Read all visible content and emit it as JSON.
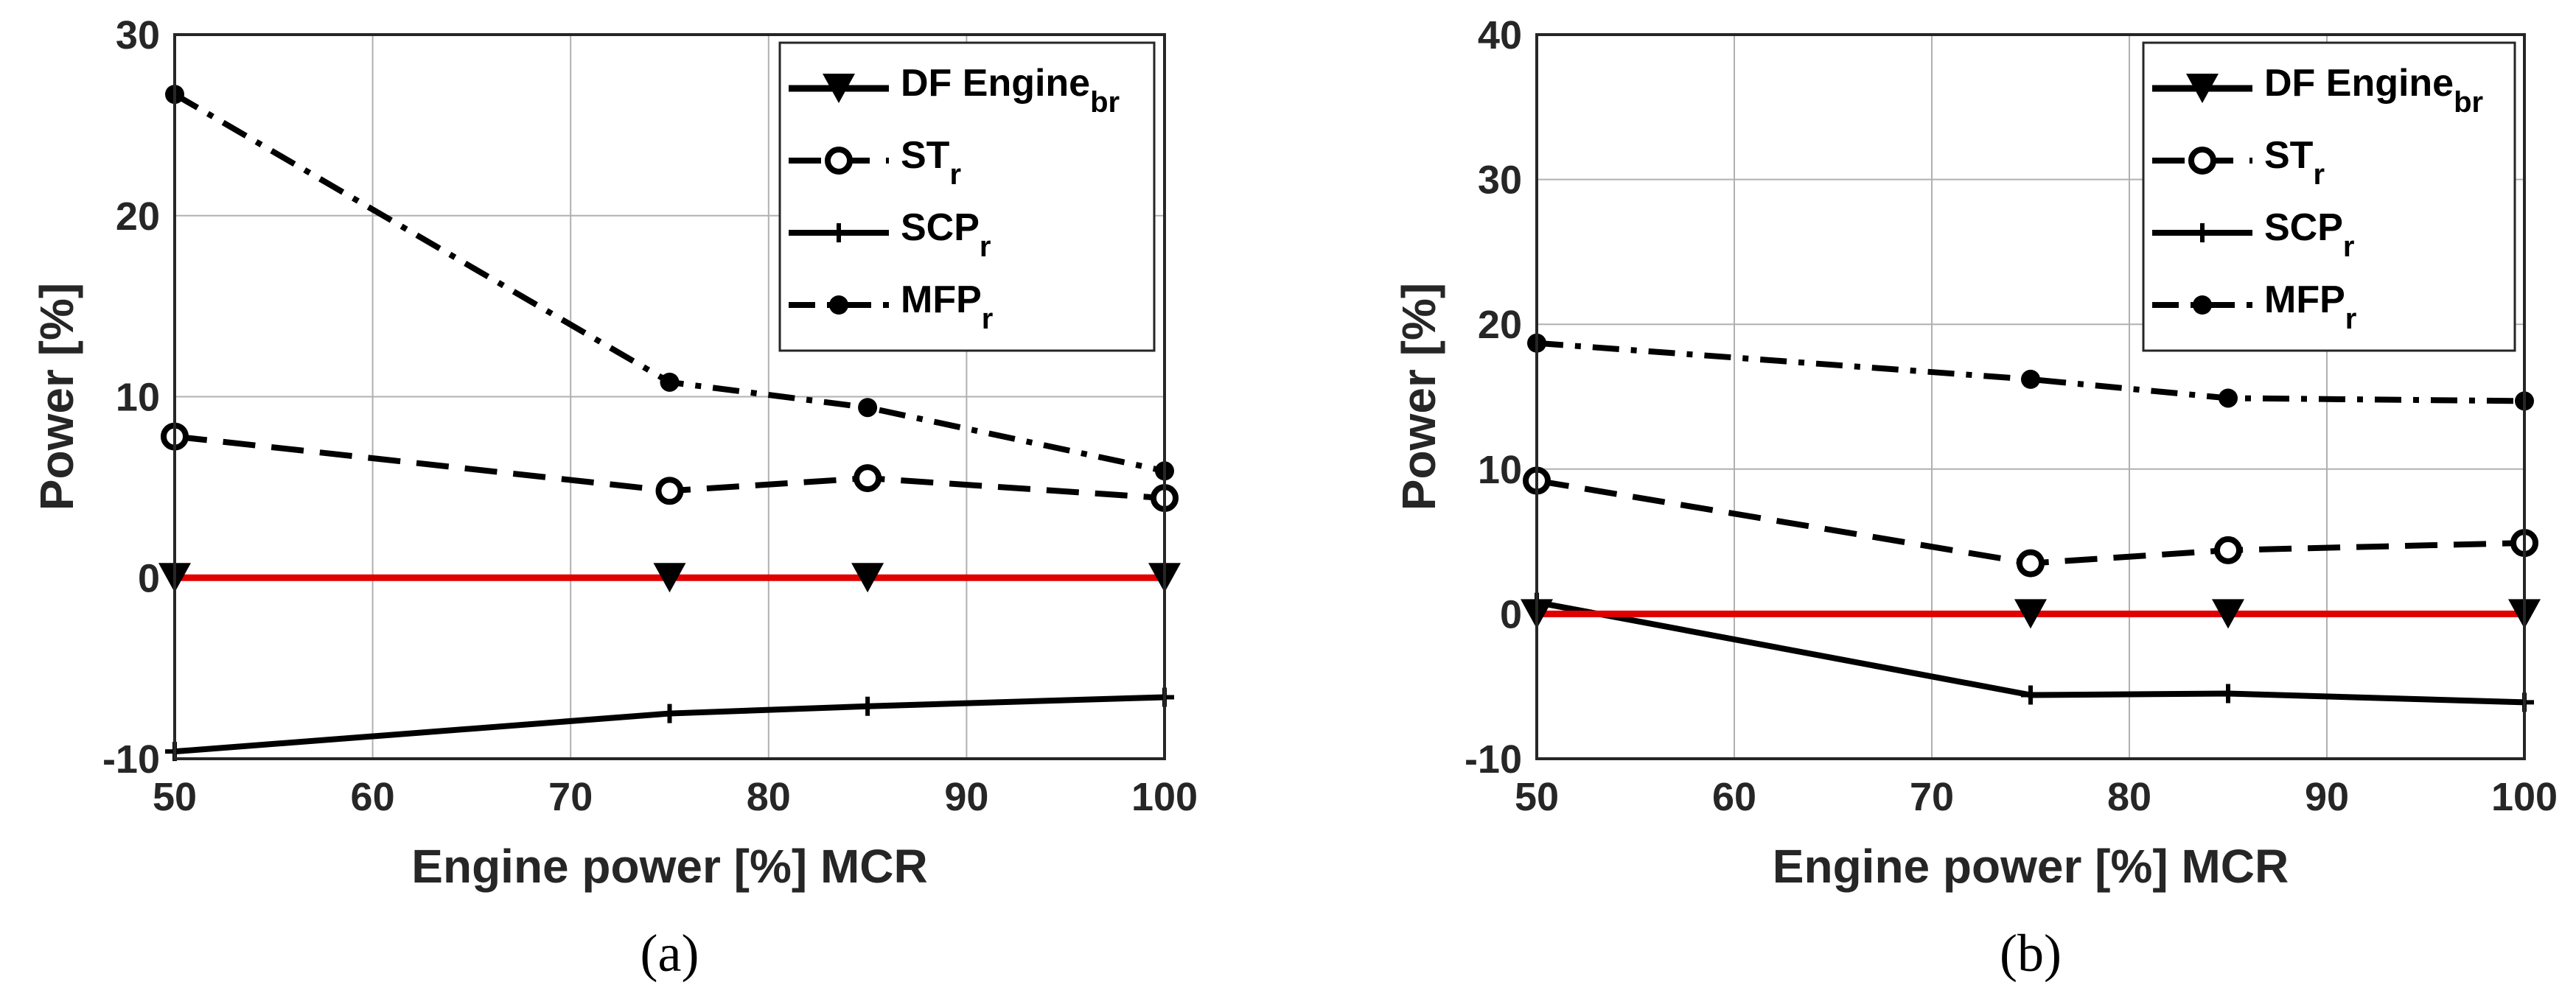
{
  "chart_data": [
    {
      "type": "line",
      "panel_label": "(a)",
      "xlabel": "Engine power [%] MCR",
      "ylabel": "Power [%]",
      "xlim": [
        50,
        100
      ],
      "ylim": [
        -10,
        30
      ],
      "xticks": [
        50,
        60,
        70,
        80,
        90,
        100
      ],
      "yticks": [
        -10,
        0,
        10,
        20,
        30
      ],
      "grid": true,
      "legend_position": "top-right",
      "x": [
        50,
        75,
        85,
        100
      ],
      "series": [
        {
          "name": "DF Engine",
          "sub": "br",
          "style": "solid-red",
          "marker": "triangle-down",
          "values": [
            0,
            0,
            0,
            0
          ]
        },
        {
          "name": "ST",
          "sub": "r",
          "style": "dashed",
          "marker": "circle-open",
          "values": [
            7.8,
            4.8,
            5.5,
            4.4
          ]
        },
        {
          "name": "SCP",
          "sub": "r",
          "style": "solid",
          "marker": "plus",
          "values": [
            -9.6,
            -7.5,
            -7.1,
            -6.6
          ]
        },
        {
          "name": "MFP",
          "sub": "r",
          "style": "dashdot",
          "marker": "circle-filled",
          "values": [
            26.7,
            10.8,
            9.4,
            5.9
          ]
        }
      ]
    },
    {
      "type": "line",
      "panel_label": "(b)",
      "xlabel": "Engine power [%] MCR",
      "ylabel": "Power [%]",
      "xlim": [
        50,
        100
      ],
      "ylim": [
        -10,
        40
      ],
      "xticks": [
        50,
        60,
        70,
        80,
        90,
        100
      ],
      "yticks": [
        -10,
        0,
        10,
        20,
        30,
        40
      ],
      "grid": true,
      "legend_position": "top-right",
      "x": [
        50,
        75,
        85,
        100
      ],
      "series": [
        {
          "name": "DF Engine",
          "sub": "br",
          "style": "solid-red",
          "marker": "triangle-down",
          "values": [
            0,
            0,
            0,
            0
          ]
        },
        {
          "name": "ST",
          "sub": "r",
          "style": "dashed",
          "marker": "circle-open",
          "values": [
            9.2,
            3.5,
            4.4,
            4.9
          ]
        },
        {
          "name": "SCP",
          "sub": "r",
          "style": "solid",
          "marker": "plus",
          "values": [
            0.8,
            -5.6,
            -5.5,
            -6.1
          ]
        },
        {
          "name": "MFP",
          "sub": "r",
          "style": "dashdot",
          "marker": "circle-filled",
          "values": [
            18.7,
            16.2,
            14.9,
            14.7
          ]
        }
      ]
    }
  ]
}
